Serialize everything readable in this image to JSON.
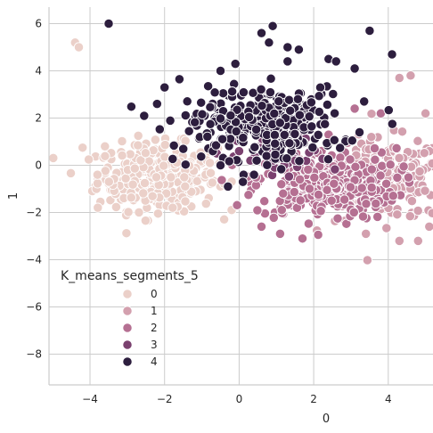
{
  "chart_data": {
    "type": "scatter",
    "xlabel": "0",
    "ylabel": "1",
    "xlim": [
      -5.1,
      5.2
    ],
    "ylim": [
      -9.3,
      6.7
    ],
    "xticks": [
      -4,
      -2,
      0,
      2,
      4
    ],
    "yticks": [
      -8,
      -6,
      -4,
      -2,
      0,
      2,
      4,
      6
    ],
    "grid": true,
    "legend": {
      "title": "K_means_segments_5",
      "placement": "lower-left",
      "entries": [
        "0",
        "1",
        "2",
        "3",
        "4"
      ]
    },
    "series": [
      {
        "name": "0",
        "color": "#ebd0c9",
        "center": [
          -2.2,
          -0.5
        ],
        "spread": [
          0.8,
          0.7
        ],
        "n": 330,
        "points": [
          [
            -4.4,
            5.2
          ],
          [
            -4.3,
            5.0
          ],
          [
            -4.2,
            0.75
          ],
          [
            -3.8,
            -0.4
          ],
          [
            -3.6,
            0.8
          ]
        ]
      },
      {
        "name": "1",
        "color": "#d3a0ae",
        "center": [
          3.9,
          -0.6
        ],
        "spread": [
          0.8,
          0.85
        ],
        "n": 220,
        "points": [
          [
            4.6,
            3.8
          ],
          [
            4.3,
            3.7
          ],
          [
            5.0,
            2.2
          ],
          [
            4.8,
            -3.2
          ],
          [
            4.3,
            -3.2
          ],
          [
            3.4,
            -2.9
          ],
          [
            5.1,
            -2.6
          ]
        ]
      },
      {
        "name": "2",
        "color": "#b57092",
        "center": [
          2.3,
          -0.8
        ],
        "spread": [
          0.95,
          0.75
        ],
        "n": 300,
        "points": [
          [
            1.7,
            -3.1
          ],
          [
            1.1,
            -2.9
          ],
          [
            0.6,
            -2.6
          ],
          [
            3.8,
            2.2
          ],
          [
            3.1,
            2.4
          ],
          [
            2.4,
            1.3
          ]
        ]
      },
      {
        "name": "3",
        "color": "#7a416f",
        "center": [
          1.2,
          0.3
        ],
        "spread": [
          0.6,
          0.5
        ],
        "n": 40,
        "points": [
          [
            -0.6,
            0.5
          ],
          [
            0.0,
            0.6
          ],
          [
            1.0,
            0.8
          ],
          [
            1.5,
            0.2
          ],
          [
            0.3,
            0.2
          ]
        ]
      },
      {
        "name": "4",
        "color": "#2d1e3e",
        "center": [
          0.6,
          1.8
        ],
        "spread": [
          1.05,
          0.75
        ],
        "n": 340,
        "points": [
          [
            -3.5,
            6.0
          ],
          [
            0.9,
            5.9
          ],
          [
            3.5,
            5.7
          ],
          [
            4.1,
            4.7
          ],
          [
            0.6,
            5.6
          ],
          [
            0.8,
            5.2
          ],
          [
            1.3,
            5.0
          ],
          [
            1.6,
            4.9
          ],
          [
            1.3,
            4.4
          ],
          [
            2.4,
            4.5
          ],
          [
            2.6,
            4.4
          ],
          [
            3.1,
            4.1
          ],
          [
            -0.1,
            4.3
          ],
          [
            -0.5,
            4.0
          ],
          [
            -2.0,
            3.3
          ],
          [
            -2.2,
            2.6
          ],
          [
            -0.5,
            0.0
          ],
          [
            0.1,
            -0.7
          ],
          [
            -0.3,
            -0.9
          ],
          [
            0.4,
            -0.4
          ]
        ]
      }
    ]
  }
}
